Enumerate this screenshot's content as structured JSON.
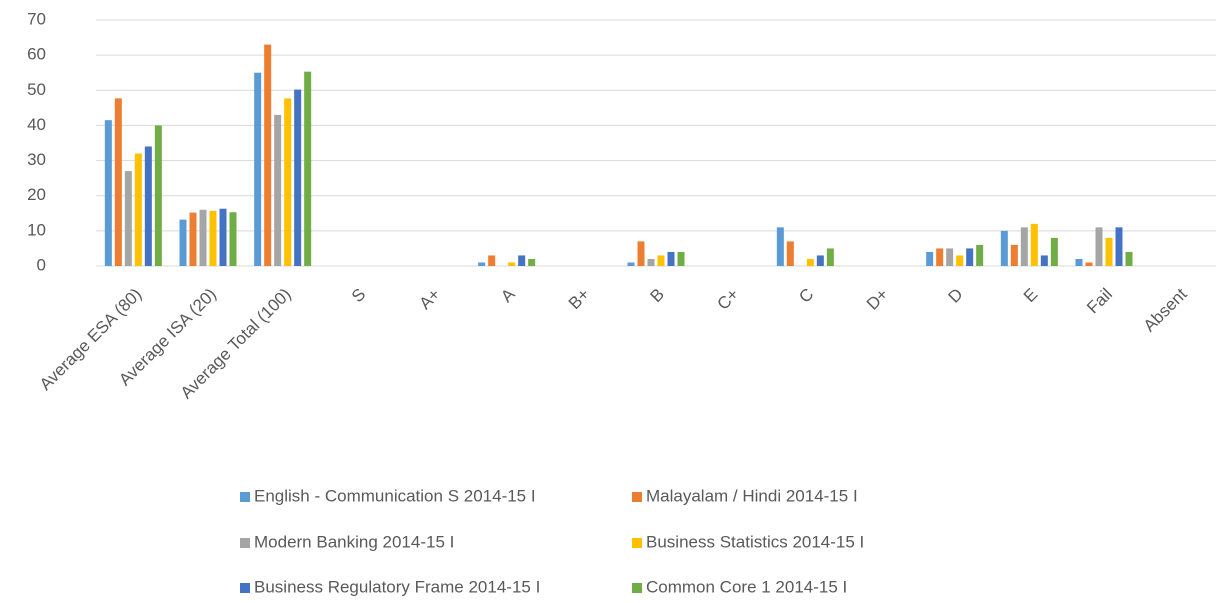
{
  "chart_data": {
    "type": "bar",
    "categories": [
      "Average ESA (80)",
      "Average ISA (20)",
      "Average Total (100)",
      "S",
      "A+",
      "A",
      "B+",
      "B",
      "C+",
      "C",
      "D+",
      "D",
      "E",
      "Fail",
      "Absent"
    ],
    "series": [
      {
        "name": "English - Communication S 2014-15 I",
        "color": "#5b9bd5",
        "values": [
          41.5,
          13.2,
          55,
          0,
          0,
          1,
          0,
          1,
          0,
          11,
          0,
          4,
          10,
          2,
          0
        ]
      },
      {
        "name": "Malayalam / Hindi 2014-15 I",
        "color": "#ed7d31",
        "values": [
          47.7,
          15.2,
          63,
          0,
          0,
          3,
          0,
          7,
          0,
          7,
          0,
          5,
          6,
          1,
          0
        ]
      },
      {
        "name": "Modern Banking 2014-15 I",
        "color": "#a5a5a5",
        "values": [
          27,
          16,
          43,
          0,
          0,
          0,
          0,
          2,
          0,
          0,
          0,
          5,
          11,
          11,
          0
        ]
      },
      {
        "name": "Business Statistics 2014-15 I",
        "color": "#ffc000",
        "values": [
          32,
          15.7,
          47.7,
          0,
          0,
          1,
          0,
          3,
          0,
          2,
          0,
          3,
          12,
          8,
          0
        ]
      },
      {
        "name": "Business Regulatory Frame 2014-15 I",
        "color": "#4472c4",
        "values": [
          34,
          16.3,
          50.2,
          0,
          0,
          3,
          0,
          4,
          0,
          3,
          0,
          5,
          3,
          11,
          0
        ]
      },
      {
        "name": "Common Core 1  2014-15 I",
        "color": "#70ad47",
        "values": [
          40,
          15.3,
          55.3,
          0,
          0,
          2,
          0,
          4,
          0,
          5,
          0,
          6,
          8,
          4,
          0
        ]
      }
    ],
    "ylim": [
      0,
      70
    ],
    "yticks": [
      0,
      10,
      20,
      30,
      40,
      50,
      60,
      70
    ],
    "grid": true,
    "legend": "bottom"
  }
}
